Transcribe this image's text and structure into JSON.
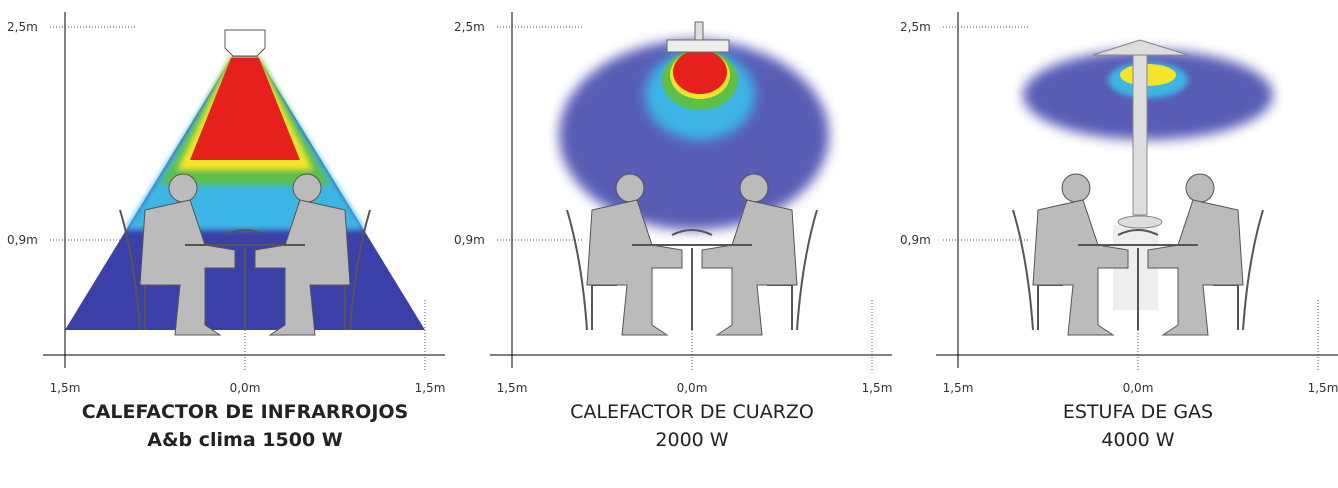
{
  "panels": [
    {
      "y_labels": [
        "2,5m",
        "0,9m"
      ],
      "x_labels": [
        "1,5m",
        "0,0m",
        "1,5m"
      ],
      "caption": [
        "CALEFACTOR DE INFRARROJOS",
        "A&b clima 1500 W"
      ]
    },
    {
      "y_labels": [
        "2,5m",
        "0,9m"
      ],
      "x_labels": [
        "1,5m",
        "0,0m",
        "1,5m"
      ],
      "caption": [
        "CALEFACTOR DE CUARZO",
        "2000 W"
      ]
    },
    {
      "y_labels": [
        "2,5m",
        "0,9m"
      ],
      "x_labels": [
        "1,5m",
        "0,0m",
        "1,5m"
      ],
      "caption": [
        "ESTUFA DE GAS",
        "4000 W"
      ]
    }
  ]
}
